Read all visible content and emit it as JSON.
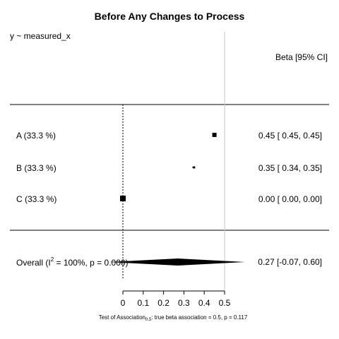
{
  "chart_data": {
    "type": "forest",
    "title": "Before Any Changes to Process",
    "model_label": "y ~ measured_x",
    "right_header": "Beta [95% CI]",
    "rows": [
      {
        "label": "A",
        "weight": "33.3 %",
        "estimate": 0.45,
        "lower": 0.45,
        "upper": 0.45,
        "ci_text": "0.45 [ 0.45, 0.45]"
      },
      {
        "label": "B",
        "weight": "33.3 %",
        "estimate": 0.35,
        "lower": 0.34,
        "upper": 0.35,
        "ci_text": "0.35 [ 0.34, 0.35]"
      },
      {
        "label": "C",
        "weight": "33.3 %",
        "estimate": 0.0,
        "lower": 0.0,
        "upper": 0.0,
        "ci_text": "0.00 [ 0.00, 0.00]"
      }
    ],
    "overall": {
      "label_prefix": "Overall (I",
      "sup": "2",
      "label_suffix": " = 100%, p = 0.000)",
      "estimate": 0.27,
      "lower": -0.07,
      "upper": 0.6,
      "ci_text": "0.27 [-0.07, 0.60]"
    },
    "null_line": 0,
    "reference_line": 0.5,
    "x_ticks": [
      "0",
      "0.1",
      "0.2",
      "0.3",
      "0.4",
      "0.5"
    ],
    "xlim": [
      0,
      0.5
    ],
    "footnote_prefix": "Test of Association",
    "footnote_sub": "0.5",
    "footnote_suffix": ": true beta association = 0.5, p = 0.117"
  }
}
